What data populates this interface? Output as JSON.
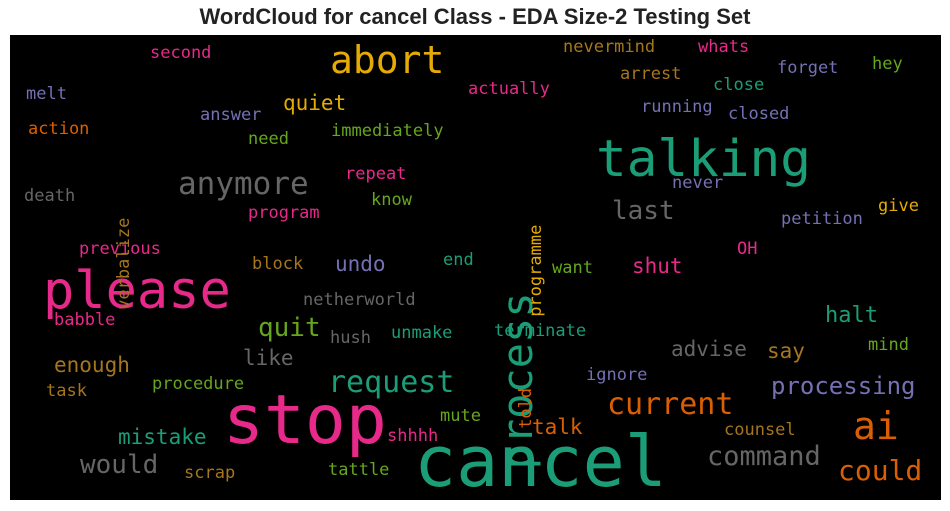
{
  "chart_data": {
    "type": "wordcloud",
    "title": "WordCloud for cancel Class - EDA Size-2 Testing Set",
    "background": "#000000",
    "colormap": "Dark2",
    "palette": {
      "teal": "#1b9e77",
      "orange": "#d95f02",
      "purple": "#7570b3",
      "pink": "#e7298a",
      "green": "#66a61e",
      "gold": "#e6ab02",
      "brown": "#a6761d",
      "gray": "#666666"
    },
    "words": [
      {
        "text": "cancel",
        "weight": 100,
        "color": "teal"
      },
      {
        "text": "stop",
        "weight": 95,
        "color": "pink"
      },
      {
        "text": "please",
        "weight": 80,
        "color": "pink"
      },
      {
        "text": "talking",
        "weight": 72,
        "color": "teal"
      },
      {
        "text": "process",
        "weight": 58,
        "color": "teal"
      },
      {
        "text": "abort",
        "weight": 55,
        "color": "gold"
      },
      {
        "text": "ai",
        "weight": 52,
        "color": "orange"
      },
      {
        "text": "anymore",
        "weight": 45,
        "color": "gray"
      },
      {
        "text": "request",
        "weight": 44,
        "color": "teal"
      },
      {
        "text": "current",
        "weight": 42,
        "color": "orange"
      },
      {
        "text": "could",
        "weight": 38,
        "color": "orange"
      },
      {
        "text": "command",
        "weight": 38,
        "color": "gray"
      },
      {
        "text": "would",
        "weight": 36,
        "color": "gray"
      },
      {
        "text": "last",
        "weight": 35,
        "color": "gray"
      },
      {
        "text": "quit",
        "weight": 35,
        "color": "green"
      },
      {
        "text": "processing",
        "weight": 33,
        "color": "purple"
      },
      {
        "text": "halt",
        "weight": 30,
        "color": "teal"
      },
      {
        "text": "mistake",
        "weight": 29,
        "color": "teal"
      },
      {
        "text": "enough",
        "weight": 29,
        "color": "brown"
      },
      {
        "text": "advise",
        "weight": 28,
        "color": "gray"
      },
      {
        "text": "shut",
        "weight": 28,
        "color": "pink"
      },
      {
        "text": "talk",
        "weight": 28,
        "color": "orange"
      },
      {
        "text": "undo",
        "weight": 28,
        "color": "purple"
      },
      {
        "text": "say",
        "weight": 28,
        "color": "brown"
      },
      {
        "text": "quiet",
        "weight": 27,
        "color": "gold"
      },
      {
        "text": "like",
        "weight": 27,
        "color": "gray"
      },
      {
        "text": "scrap",
        "weight": 20,
        "color": "brown"
      },
      {
        "text": "shhhh",
        "weight": 20,
        "color": "pink"
      },
      {
        "text": "tattle",
        "weight": 20,
        "color": "green"
      },
      {
        "text": "counsel",
        "weight": 20,
        "color": "brown"
      },
      {
        "text": "mute",
        "weight": 20,
        "color": "green"
      },
      {
        "text": "ignore",
        "weight": 20,
        "color": "purple"
      },
      {
        "text": "told",
        "weight": 20,
        "color": "orange"
      },
      {
        "text": "terminate",
        "weight": 20,
        "color": "teal"
      },
      {
        "text": "unmake",
        "weight": 20,
        "color": "teal"
      },
      {
        "text": "hush",
        "weight": 20,
        "color": "gray"
      },
      {
        "text": "procedure",
        "weight": 20,
        "color": "green"
      },
      {
        "text": "task",
        "weight": 20,
        "color": "brown"
      },
      {
        "text": "babble",
        "weight": 20,
        "color": "pink"
      },
      {
        "text": "netherworld",
        "weight": 20,
        "color": "gray"
      },
      {
        "text": "want",
        "weight": 20,
        "color": "green"
      },
      {
        "text": "end",
        "weight": 20,
        "color": "teal"
      },
      {
        "text": "block",
        "weight": 20,
        "color": "brown"
      },
      {
        "text": "previous",
        "weight": 20,
        "color": "pink"
      },
      {
        "text": "OH",
        "weight": 20,
        "color": "pink"
      },
      {
        "text": "mind",
        "weight": 20,
        "color": "green"
      },
      {
        "text": "give",
        "weight": 20,
        "color": "gold"
      },
      {
        "text": "petition",
        "weight": 20,
        "color": "purple"
      },
      {
        "text": "never",
        "weight": 20,
        "color": "purple"
      },
      {
        "text": "program",
        "weight": 20,
        "color": "pink"
      },
      {
        "text": "know",
        "weight": 20,
        "color": "green"
      },
      {
        "text": "repeat",
        "weight": 20,
        "color": "pink"
      },
      {
        "text": "death",
        "weight": 20,
        "color": "gray"
      },
      {
        "text": "verbalize",
        "weight": 20,
        "color": "brown"
      },
      {
        "text": "action",
        "weight": 20,
        "color": "orange"
      },
      {
        "text": "melt",
        "weight": 20,
        "color": "purple"
      },
      {
        "text": "second",
        "weight": 20,
        "color": "pink"
      },
      {
        "text": "need",
        "weight": 20,
        "color": "green"
      },
      {
        "text": "answer",
        "weight": 20,
        "color": "purple"
      },
      {
        "text": "immediately",
        "weight": 20,
        "color": "green"
      },
      {
        "text": "programme",
        "weight": 20,
        "color": "gold"
      },
      {
        "text": "actually",
        "weight": 20,
        "color": "pink"
      },
      {
        "text": "nevermind",
        "weight": 20,
        "color": "brown"
      },
      {
        "text": "arrest",
        "weight": 20,
        "color": "brown"
      },
      {
        "text": "whats",
        "weight": 20,
        "color": "pink"
      },
      {
        "text": "close",
        "weight": 20,
        "color": "teal"
      },
      {
        "text": "running",
        "weight": 20,
        "color": "purple"
      },
      {
        "text": "closed",
        "weight": 20,
        "color": "purple"
      },
      {
        "text": "forget",
        "weight": 20,
        "color": "purple"
      },
      {
        "text": "hey",
        "weight": 20,
        "color": "green"
      }
    ]
  }
}
